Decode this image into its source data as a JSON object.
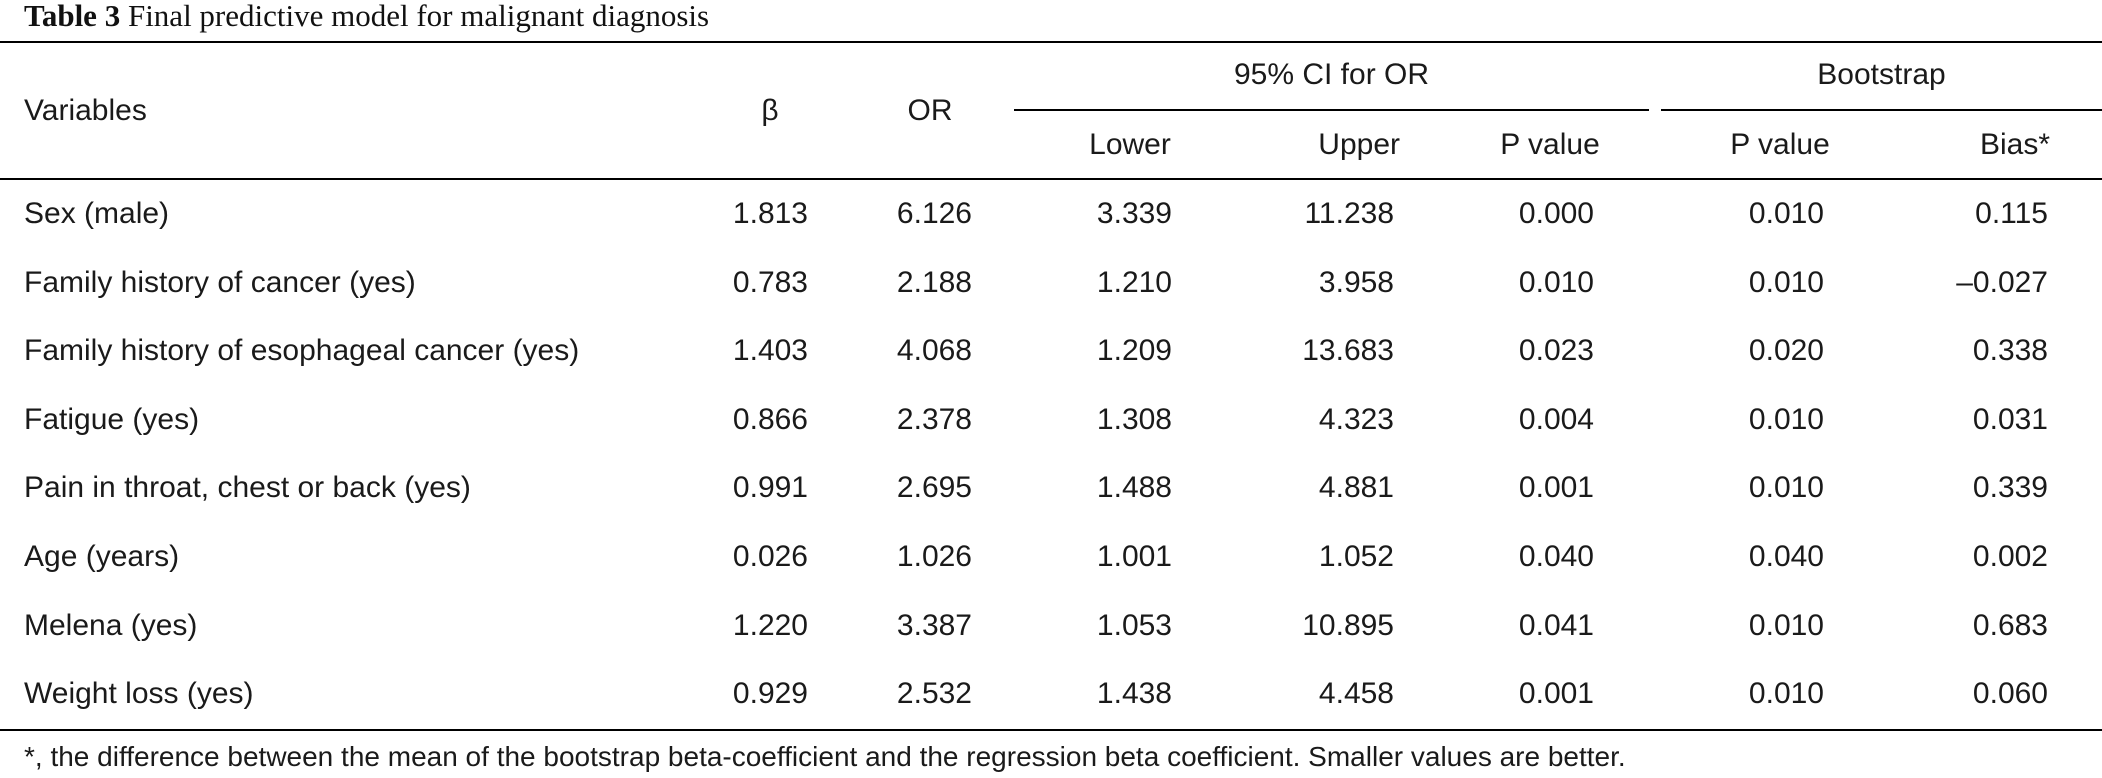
{
  "caption": {
    "label": "Table 3",
    "title": "Final predictive model for malignant diagnosis"
  },
  "headers": {
    "variables": "Variables",
    "beta": "β",
    "or": "OR",
    "ci_group": "95% CI for OR",
    "bootstrap_group": "Bootstrap",
    "lower": "Lower",
    "upper": "Upper",
    "p_value": "P value",
    "boot_p_value": "P value",
    "bias": "Bias*"
  },
  "rows": [
    {
      "variable": "Sex (male)",
      "beta": "1.813",
      "or": "6.126",
      "lower": "3.339",
      "upper": "11.238",
      "p": "0.000",
      "boot_p": "0.010",
      "bias": "0.115"
    },
    {
      "variable": "Family history of cancer (yes)",
      "beta": "0.783",
      "or": "2.188",
      "lower": "1.210",
      "upper": "3.958",
      "p": "0.010",
      "boot_p": "0.010",
      "bias": "–0.027"
    },
    {
      "variable": "Family history of esophageal cancer (yes)",
      "beta": "1.403",
      "or": "4.068",
      "lower": "1.209",
      "upper": "13.683",
      "p": "0.023",
      "boot_p": "0.020",
      "bias": "0.338"
    },
    {
      "variable": "Fatigue (yes)",
      "beta": "0.866",
      "or": "2.378",
      "lower": "1.308",
      "upper": "4.323",
      "p": "0.004",
      "boot_p": "0.010",
      "bias": "0.031"
    },
    {
      "variable": "Pain in throat, chest or back (yes)",
      "beta": "0.991",
      "or": "2.695",
      "lower": "1.488",
      "upper": "4.881",
      "p": "0.001",
      "boot_p": "0.010",
      "bias": "0.339"
    },
    {
      "variable": "Age (years)",
      "beta": "0.026",
      "or": "1.026",
      "lower": "1.001",
      "upper": "1.052",
      "p": "0.040",
      "boot_p": "0.040",
      "bias": "0.002"
    },
    {
      "variable": "Melena (yes)",
      "beta": "1.220",
      "or": "3.387",
      "lower": "1.053",
      "upper": "10.895",
      "p": "0.041",
      "boot_p": "0.010",
      "bias": "0.683"
    },
    {
      "variable": "Weight loss (yes)",
      "beta": "0.929",
      "or": "2.532",
      "lower": "1.438",
      "upper": "4.458",
      "p": "0.001",
      "boot_p": "0.010",
      "bias": "0.060"
    }
  ],
  "footnote": "*, the difference between the mean of the bootstrap beta-coefficient and the regression beta coefficient. Smaller values are better."
}
